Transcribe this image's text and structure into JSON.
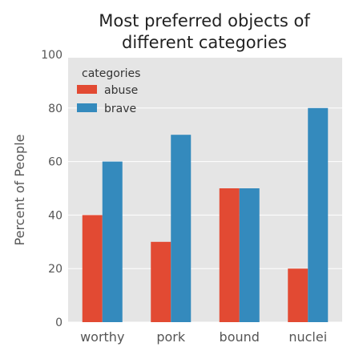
{
  "chart_data": {
    "type": "bar",
    "title": "Most preferred objects of different categories",
    "title_lines": [
      "Most preferred objects of",
      "different categories"
    ],
    "xlabel": "",
    "ylabel": "Percent of People",
    "categories": [
      "worthy",
      "pork",
      "bound",
      "nuclei"
    ],
    "series": [
      {
        "name": "abuse",
        "values": [
          40,
          30,
          50,
          20
        ],
        "color": "#e24a33"
      },
      {
        "name": "brave",
        "values": [
          60,
          70,
          50,
          80
        ],
        "color": "#348abd"
      }
    ],
    "ylim": [
      0,
      100
    ],
    "yticks": [
      0,
      20,
      40,
      60,
      80,
      100
    ],
    "grid": true,
    "legend": {
      "title": "categories",
      "placement": "top-left"
    },
    "colors": {
      "plot_background": "#e5e5e5",
      "grid": "#ffffff"
    }
  }
}
